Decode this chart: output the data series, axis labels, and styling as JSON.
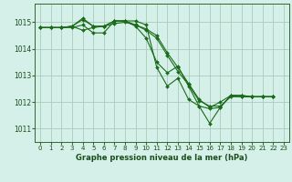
{
  "background_color": "#d4f0e8",
  "plot_bg_color": "#d4f0e8",
  "grid_color": "#aaccbb",
  "line_color": "#1a6b1a",
  "marker_color": "#1a6b1a",
  "xlabel": "Graphe pression niveau de la mer (hPa)",
  "ylim": [
    1010.5,
    1015.7
  ],
  "xlim": [
    -0.5,
    23.5
  ],
  "yticks": [
    1011,
    1012,
    1013,
    1014,
    1015
  ],
  "xticks": [
    0,
    1,
    2,
    3,
    4,
    5,
    6,
    7,
    8,
    9,
    10,
    11,
    12,
    13,
    14,
    15,
    16,
    17,
    18,
    19,
    20,
    21,
    22,
    23
  ],
  "series": [
    [
      1014.8,
      1014.8,
      1014.8,
      1014.8,
      1014.9,
      1014.6,
      1014.6,
      1015.05,
      1015.05,
      1014.85,
      1014.4,
      1013.5,
      1013.1,
      1013.35,
      1012.6,
      1011.85,
      1011.2,
      1011.8,
      1012.25,
      1012.25,
      1012.2,
      1012.2,
      1012.2
    ],
    [
      1014.8,
      1014.8,
      1014.8,
      1014.85,
      1015.1,
      1014.85,
      1014.85,
      1014.95,
      1015.0,
      1014.9,
      1014.7,
      1014.4,
      1013.75,
      1013.15,
      1012.65,
      1012.05,
      1011.85,
      1011.85,
      1012.2,
      1012.2,
      1012.2,
      1012.2,
      1012.2
    ],
    [
      1014.8,
      1014.8,
      1014.8,
      1014.85,
      1015.15,
      1014.85,
      1014.85,
      1015.05,
      1015.05,
      1014.9,
      1014.75,
      1014.5,
      1013.85,
      1013.3,
      1012.7,
      1012.1,
      1011.8,
      1012.0,
      1012.25,
      1012.25,
      1012.2,
      1012.2,
      1012.2
    ],
    [
      1014.8,
      1014.8,
      1014.8,
      1014.85,
      1014.7,
      1014.8,
      1014.85,
      1015.05,
      1015.05,
      1015.05,
      1014.9,
      1013.3,
      1012.6,
      1012.9,
      1012.1,
      1011.85,
      1011.75,
      1011.8,
      1012.25,
      1012.2,
      1012.2,
      1012.2,
      1012.2
    ]
  ],
  "xlabel_fontsize": 6.0,
  "xtick_fontsize": 5.0,
  "ytick_fontsize": 5.5
}
